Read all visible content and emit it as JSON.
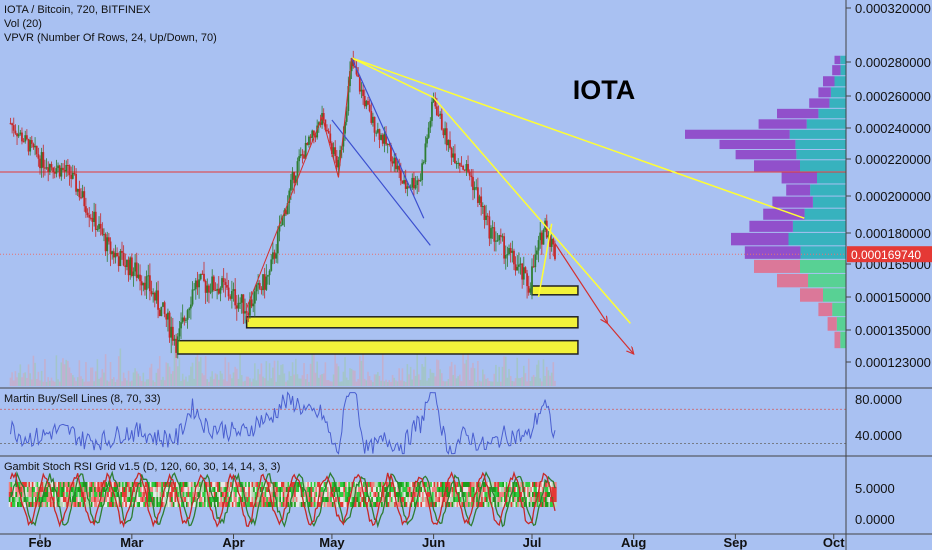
{
  "header": {
    "symbol_line": "IOTA / Bitcoin, 720, BITFINEX",
    "vol_line": "Vol (20)",
    "vpvr_line": "VPVR (Number Of Rows, 24, Up/Down, 70)"
  },
  "annotation": {
    "iota": "IOTA"
  },
  "colors": {
    "background": "#a9c1f2",
    "up_candle": "#2e7d32",
    "down_candle": "#c62828",
    "trendline": "#ffff33",
    "support_box": "#f2f23a",
    "oscillator": "#4a5fd0",
    "price_line": "#e53935",
    "price_badge": "#e53935",
    "vpvr_up": "#2ab0b8",
    "vpvr_down": "#8e44c6"
  },
  "price_axis": {
    "ticks": [
      "0.000320000",
      "0.000280000",
      "0.000260000",
      "0.000240000",
      "0.000220000",
      "0.000200000",
      "0.000180000",
      "0.000165000",
      "0.000150000",
      "0.000135000",
      "0.000123000"
    ],
    "current": "0.000169740"
  },
  "time_axis": {
    "ticks": [
      "Feb",
      "Mar",
      "Apr",
      "May",
      "Jun",
      "Jul",
      "Aug",
      "Sep",
      "Oct"
    ]
  },
  "panes": {
    "martin": {
      "label": "Martin Buy/Sell Lines (8, 70, 33)",
      "ticks": [
        "80.0000",
        "40.0000"
      ]
    },
    "gambit": {
      "label": "Gambit Stoch RSI Grid v1.5 (D, 120, 60, 30, 14, 14, 3, 3)",
      "ticks": [
        "5.0000",
        "0.0000"
      ]
    }
  },
  "chart_data": {
    "type": "candlestick",
    "pair": "IOTA / Bitcoin",
    "interval": "720",
    "exchange": "BITFINEX",
    "current_price": 0.00016974,
    "ylim": [
      0.000117,
      0.000325
    ],
    "price_path": [
      {
        "date": "2018-01-23",
        "price": 0.000243
      },
      {
        "date": "2018-02-01",
        "price": 0.00022
      },
      {
        "date": "2018-02-10",
        "price": 0.000212
      },
      {
        "date": "2018-02-22",
        "price": 0.000172
      },
      {
        "date": "2018-03-05",
        "price": 0.000158
      },
      {
        "date": "2018-03-15",
        "price": 0.00013
      },
      {
        "date": "2018-03-20",
        "price": 0.000156
      },
      {
        "date": "2018-03-28",
        "price": 0.000155
      },
      {
        "date": "2018-04-05",
        "price": 0.000145
      },
      {
        "date": "2018-04-12",
        "price": 0.00016
      },
      {
        "date": "2018-04-20",
        "price": 0.000215
      },
      {
        "date": "2018-04-28",
        "price": 0.000245
      },
      {
        "date": "2018-05-03",
        "price": 0.000215
      },
      {
        "date": "2018-05-07",
        "price": 0.00028
      },
      {
        "date": "2018-05-13",
        "price": 0.000245
      },
      {
        "date": "2018-05-18",
        "price": 0.000228
      },
      {
        "date": "2018-05-23",
        "price": 0.000205
      },
      {
        "date": "2018-05-28",
        "price": 0.00021
      },
      {
        "date": "2018-06-01",
        "price": 0.000258
      },
      {
        "date": "2018-06-06",
        "price": 0.000226
      },
      {
        "date": "2018-06-12",
        "price": 0.000212
      },
      {
        "date": "2018-06-18",
        "price": 0.000182
      },
      {
        "date": "2018-06-25",
        "price": 0.000167
      },
      {
        "date": "2018-06-30",
        "price": 0.000155
      },
      {
        "date": "2018-07-05",
        "price": 0.000185
      },
      {
        "date": "2018-07-08",
        "price": 0.00017
      }
    ],
    "support_zones": [
      {
        "from": "2018-07-01",
        "to": "2018-07-15",
        "low": 0.000151,
        "high": 0.000155
      },
      {
        "from": "2018-04-05",
        "to": "2018-07-15",
        "low": 0.000136,
        "high": 0.000141
      },
      {
        "from": "2018-03-15",
        "to": "2018-07-15",
        "low": 0.000126,
        "high": 0.000131
      }
    ],
    "horizontal_line": 0.000213,
    "trendlines": [
      {
        "from": {
          "date": "2018-05-07",
          "price": 0.000283
        },
        "to": {
          "date": "2018-09-22",
          "price": 0.000188
        }
      },
      {
        "from": {
          "date": "2018-05-07",
          "price": 0.000283
        },
        "to": {
          "date": "2018-06-01",
          "price": 0.000259
        }
      },
      {
        "from": {
          "date": "2018-06-01",
          "price": 0.000259
        },
        "to": {
          "date": "2018-07-31",
          "price": 0.000138
        }
      },
      {
        "from": {
          "date": "2018-07-03",
          "price": 0.00015
        },
        "to": {
          "date": "2018-07-07",
          "price": 0.000185
        }
      }
    ],
    "projections": [
      {
        "from": {
          "date": "2018-07-08",
          "price": 0.000175
        },
        "to": {
          "date": "2018-07-24",
          "price": 0.000138
        }
      },
      {
        "from": {
          "date": "2018-07-24",
          "price": 0.000138
        },
        "to": {
          "date": "2018-08-01",
          "price": 0.000126
        }
      }
    ]
  }
}
